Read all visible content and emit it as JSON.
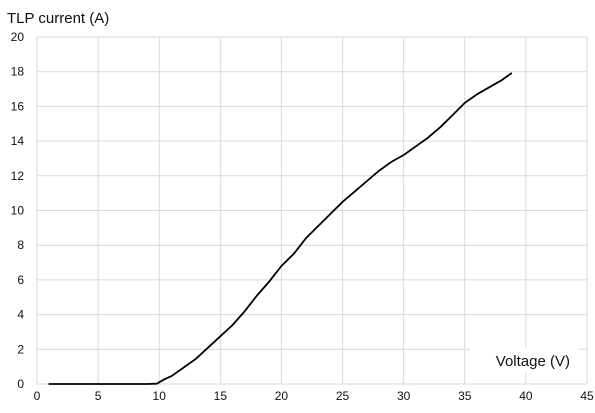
{
  "chart_data": {
    "type": "line",
    "ylabel": "TLP current (A)",
    "xlabel": "Voltage (V)",
    "xlim": [
      0,
      45
    ],
    "ylim": [
      0,
      20
    ],
    "xticks": [
      0,
      5,
      10,
      15,
      20,
      25,
      30,
      35,
      40,
      45
    ],
    "yticks": [
      0,
      2,
      4,
      6,
      8,
      10,
      12,
      14,
      16,
      18,
      20
    ],
    "grid": true,
    "line_color": "#000000",
    "grid_color": "#d9d9d9",
    "series": [
      {
        "x": [
          1.0,
          5.0,
          9.0,
          9.8,
          10.0,
          10.5,
          11.0,
          12.0,
          13.0,
          14.0,
          15.0,
          16.0,
          17.0,
          18.0,
          19.0,
          20.0,
          21.0,
          22.0,
          23.0,
          24.0,
          25.0,
          26.0,
          27.0,
          28.0,
          29.0,
          30.0,
          31.0,
          32.0,
          33.0,
          34.0,
          35.0,
          36.0,
          37.0,
          37.5,
          38.0,
          38.8
        ],
        "y": [
          0.0,
          0.0,
          0.0,
          0.02,
          0.1,
          0.3,
          0.45,
          0.95,
          1.45,
          2.1,
          2.75,
          3.4,
          4.2,
          5.1,
          5.9,
          6.8,
          7.5,
          8.4,
          9.1,
          9.8,
          10.5,
          11.1,
          11.7,
          12.3,
          12.8,
          13.2,
          13.7,
          14.2,
          14.8,
          15.5,
          16.2,
          16.7,
          17.1,
          17.3,
          17.5,
          17.9
        ]
      }
    ]
  }
}
